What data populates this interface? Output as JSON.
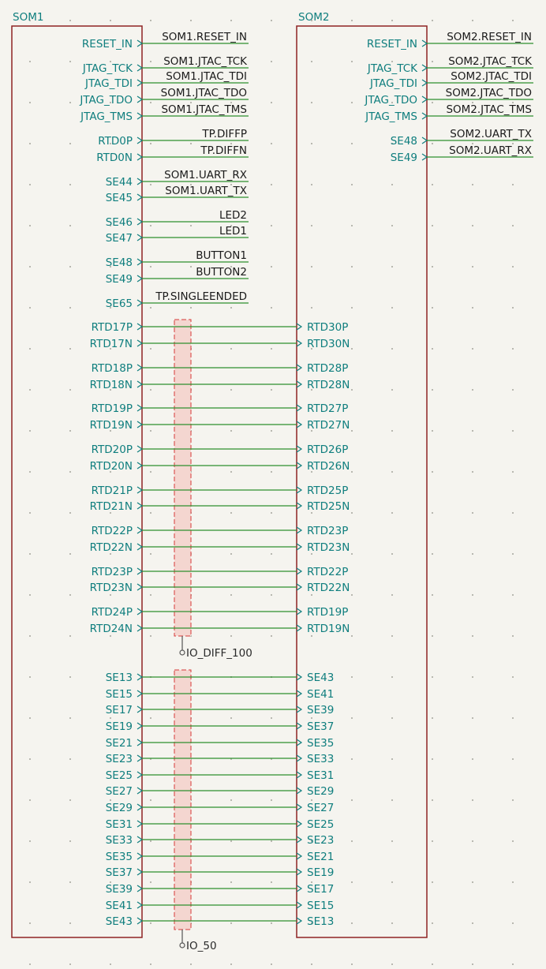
{
  "colors": {
    "background": "#f5f4ef",
    "symbol_outline": "#8e2323",
    "wire": "#2f8f2f",
    "pin_text": "#0f7e7e",
    "net_label_text": "#1a1a1a",
    "netclass_fill": "#f4d6d0",
    "netclass_border": "#d63a3a",
    "grid_dot": "#b8b8b0"
  },
  "som1": {
    "refdes": "SOM1",
    "pins": [
      {
        "pin": "RESET_IN",
        "net": "SOM1.RESET_IN"
      },
      {
        "pin": "JTAG_TCK",
        "net": "SOM1.JTAC_TCK"
      },
      {
        "pin": "JTAG_TDI",
        "net": "SOM1.JTAC_TDI"
      },
      {
        "pin": "JTAG_TDO",
        "net": "SOM1.JTAC_TDO"
      },
      {
        "pin": "JTAG_TMS",
        "net": "SOM1.JTAC_TMS"
      },
      {
        "pin": "RTD0P",
        "net": "TP.DIFFP"
      },
      {
        "pin": "RTD0N",
        "net": "TP.DIFFN"
      },
      {
        "pin": "SE44",
        "net": "SOM1.UART_RX"
      },
      {
        "pin": "SE45",
        "net": "SOM1.UART_TX"
      },
      {
        "pin": "SE46",
        "net": "LED2"
      },
      {
        "pin": "SE47",
        "net": "LED1"
      },
      {
        "pin": "SE48",
        "net": "BUTTON1"
      },
      {
        "pin": "SE49",
        "net": "BUTTON2"
      },
      {
        "pin": "SE65",
        "net": "TP.SINGLEENDED"
      }
    ]
  },
  "som2": {
    "refdes": "SOM2",
    "pins": [
      {
        "pin": "RESET_IN",
        "net": "SOM2.RESET_IN"
      },
      {
        "pin": "JTAG_TCK",
        "net": "SOM2.JTAC_TCK"
      },
      {
        "pin": "JTAG_TDI",
        "net": "SOM2.JTAC_TDI"
      },
      {
        "pin": "JTAG_TDO",
        "net": "SOM2.JTAC_TDO"
      },
      {
        "pin": "JTAG_TMS",
        "net": "SOM2.JTAC_TMS"
      },
      {
        "pin": "SE48",
        "net": "SOM2.UART_TX"
      },
      {
        "pin": "SE49",
        "net": "SOM2.UART_RX"
      }
    ]
  },
  "diff_bus": {
    "netclass": "IO_DIFF_100",
    "links": [
      {
        "left": "RTD17P",
        "right": "RTD30P"
      },
      {
        "left": "RTD17N",
        "right": "RTD30N"
      },
      {
        "left": "RTD18P",
        "right": "RTD28P"
      },
      {
        "left": "RTD18N",
        "right": "RTD28N"
      },
      {
        "left": "RTD19P",
        "right": "RTD27P"
      },
      {
        "left": "RTD19N",
        "right": "RTD27N"
      },
      {
        "left": "RTD20P",
        "right": "RTD26P"
      },
      {
        "left": "RTD20N",
        "right": "RTD26N"
      },
      {
        "left": "RTD21P",
        "right": "RTD25P"
      },
      {
        "left": "RTD21N",
        "right": "RTD25N"
      },
      {
        "left": "RTD22P",
        "right": "RTD23P"
      },
      {
        "left": "RTD22N",
        "right": "RTD23N"
      },
      {
        "left": "RTD23P",
        "right": "RTD22P"
      },
      {
        "left": "RTD23N",
        "right": "RTD22N"
      },
      {
        "left": "RTD24P",
        "right": "RTD19P"
      },
      {
        "left": "RTD24N",
        "right": "RTD19N"
      }
    ]
  },
  "se_bus": {
    "netclass": "IO_50",
    "links": [
      {
        "left": "SE13",
        "right": "SE43"
      },
      {
        "left": "SE15",
        "right": "SE41"
      },
      {
        "left": "SE17",
        "right": "SE39"
      },
      {
        "left": "SE19",
        "right": "SE37"
      },
      {
        "left": "SE21",
        "right": "SE35"
      },
      {
        "left": "SE23",
        "right": "SE33"
      },
      {
        "left": "SE25",
        "right": "SE31"
      },
      {
        "left": "SE27",
        "right": "SE29"
      },
      {
        "left": "SE29",
        "right": "SE27"
      },
      {
        "left": "SE31",
        "right": "SE25"
      },
      {
        "left": "SE33",
        "right": "SE23"
      },
      {
        "left": "SE35",
        "right": "SE21"
      },
      {
        "left": "SE37",
        "right": "SE19"
      },
      {
        "left": "SE39",
        "right": "SE17"
      },
      {
        "left": "SE41",
        "right": "SE15"
      },
      {
        "left": "SE43",
        "right": "SE13"
      }
    ]
  }
}
